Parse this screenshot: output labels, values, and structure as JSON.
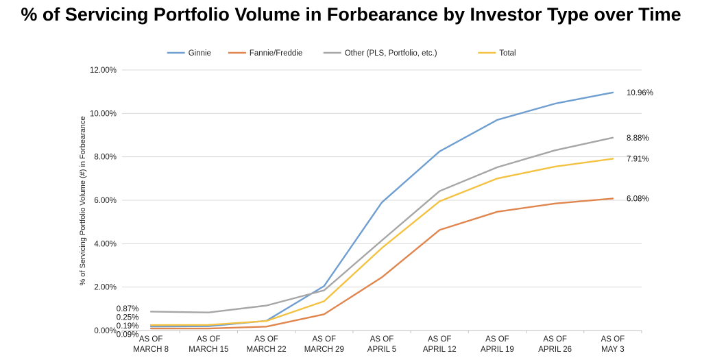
{
  "chart_data": {
    "type": "line",
    "title": "% of Servicing Portfolio Volume in Forbearance by Investor Type over Time",
    "ylabel": "% of Servicing Portfolio Volume (#) in Forbearance",
    "xlabel": "",
    "categories": [
      [
        "AS OF",
        "MARCH 8"
      ],
      [
        "AS OF",
        "MARCH 15"
      ],
      [
        "AS OF",
        "MARCH 22"
      ],
      [
        "AS OF",
        "MARCH 29"
      ],
      [
        "AS OF",
        "APRIL 5"
      ],
      [
        "AS OF",
        "APRIL 12"
      ],
      [
        "AS OF",
        "APRIL 19"
      ],
      [
        "AS OF",
        "APRIL 26"
      ],
      [
        "AS OF",
        "MAY 3"
      ]
    ],
    "ylim": [
      0,
      12
    ],
    "yticks": [
      "0.00%",
      "2.00%",
      "4.00%",
      "6.00%",
      "8.00%",
      "10.00%",
      "12.00%"
    ],
    "grid": true,
    "legend_position": "top-center",
    "series": [
      {
        "name": "Ginnie",
        "color": "#6f9fd0",
        "values": [
          0.19,
          0.2,
          0.45,
          2.05,
          5.9,
          8.25,
          9.7,
          10.45,
          10.96
        ],
        "start_label": "0.19%",
        "end_label": "10.96%"
      },
      {
        "name": "Fannie/Freddie",
        "color": "#e0854d",
        "values": [
          0.09,
          0.09,
          0.18,
          0.75,
          2.45,
          4.63,
          5.47,
          5.85,
          6.08
        ],
        "start_label": "0.09%",
        "end_label": "6.08%"
      },
      {
        "name": "Other (PLS, Portfolio, etc.)",
        "color": "#a6a6a6",
        "values": [
          0.87,
          0.83,
          1.15,
          1.85,
          4.15,
          6.42,
          7.52,
          8.3,
          8.88
        ],
        "start_label": "0.87%",
        "end_label": "8.88%"
      },
      {
        "name": "Total",
        "color": "#f4c242",
        "values": [
          0.25,
          0.26,
          0.44,
          1.35,
          3.8,
          5.95,
          7.0,
          7.55,
          7.91
        ],
        "start_label": "0.25%",
        "end_label": "7.91%"
      }
    ]
  }
}
